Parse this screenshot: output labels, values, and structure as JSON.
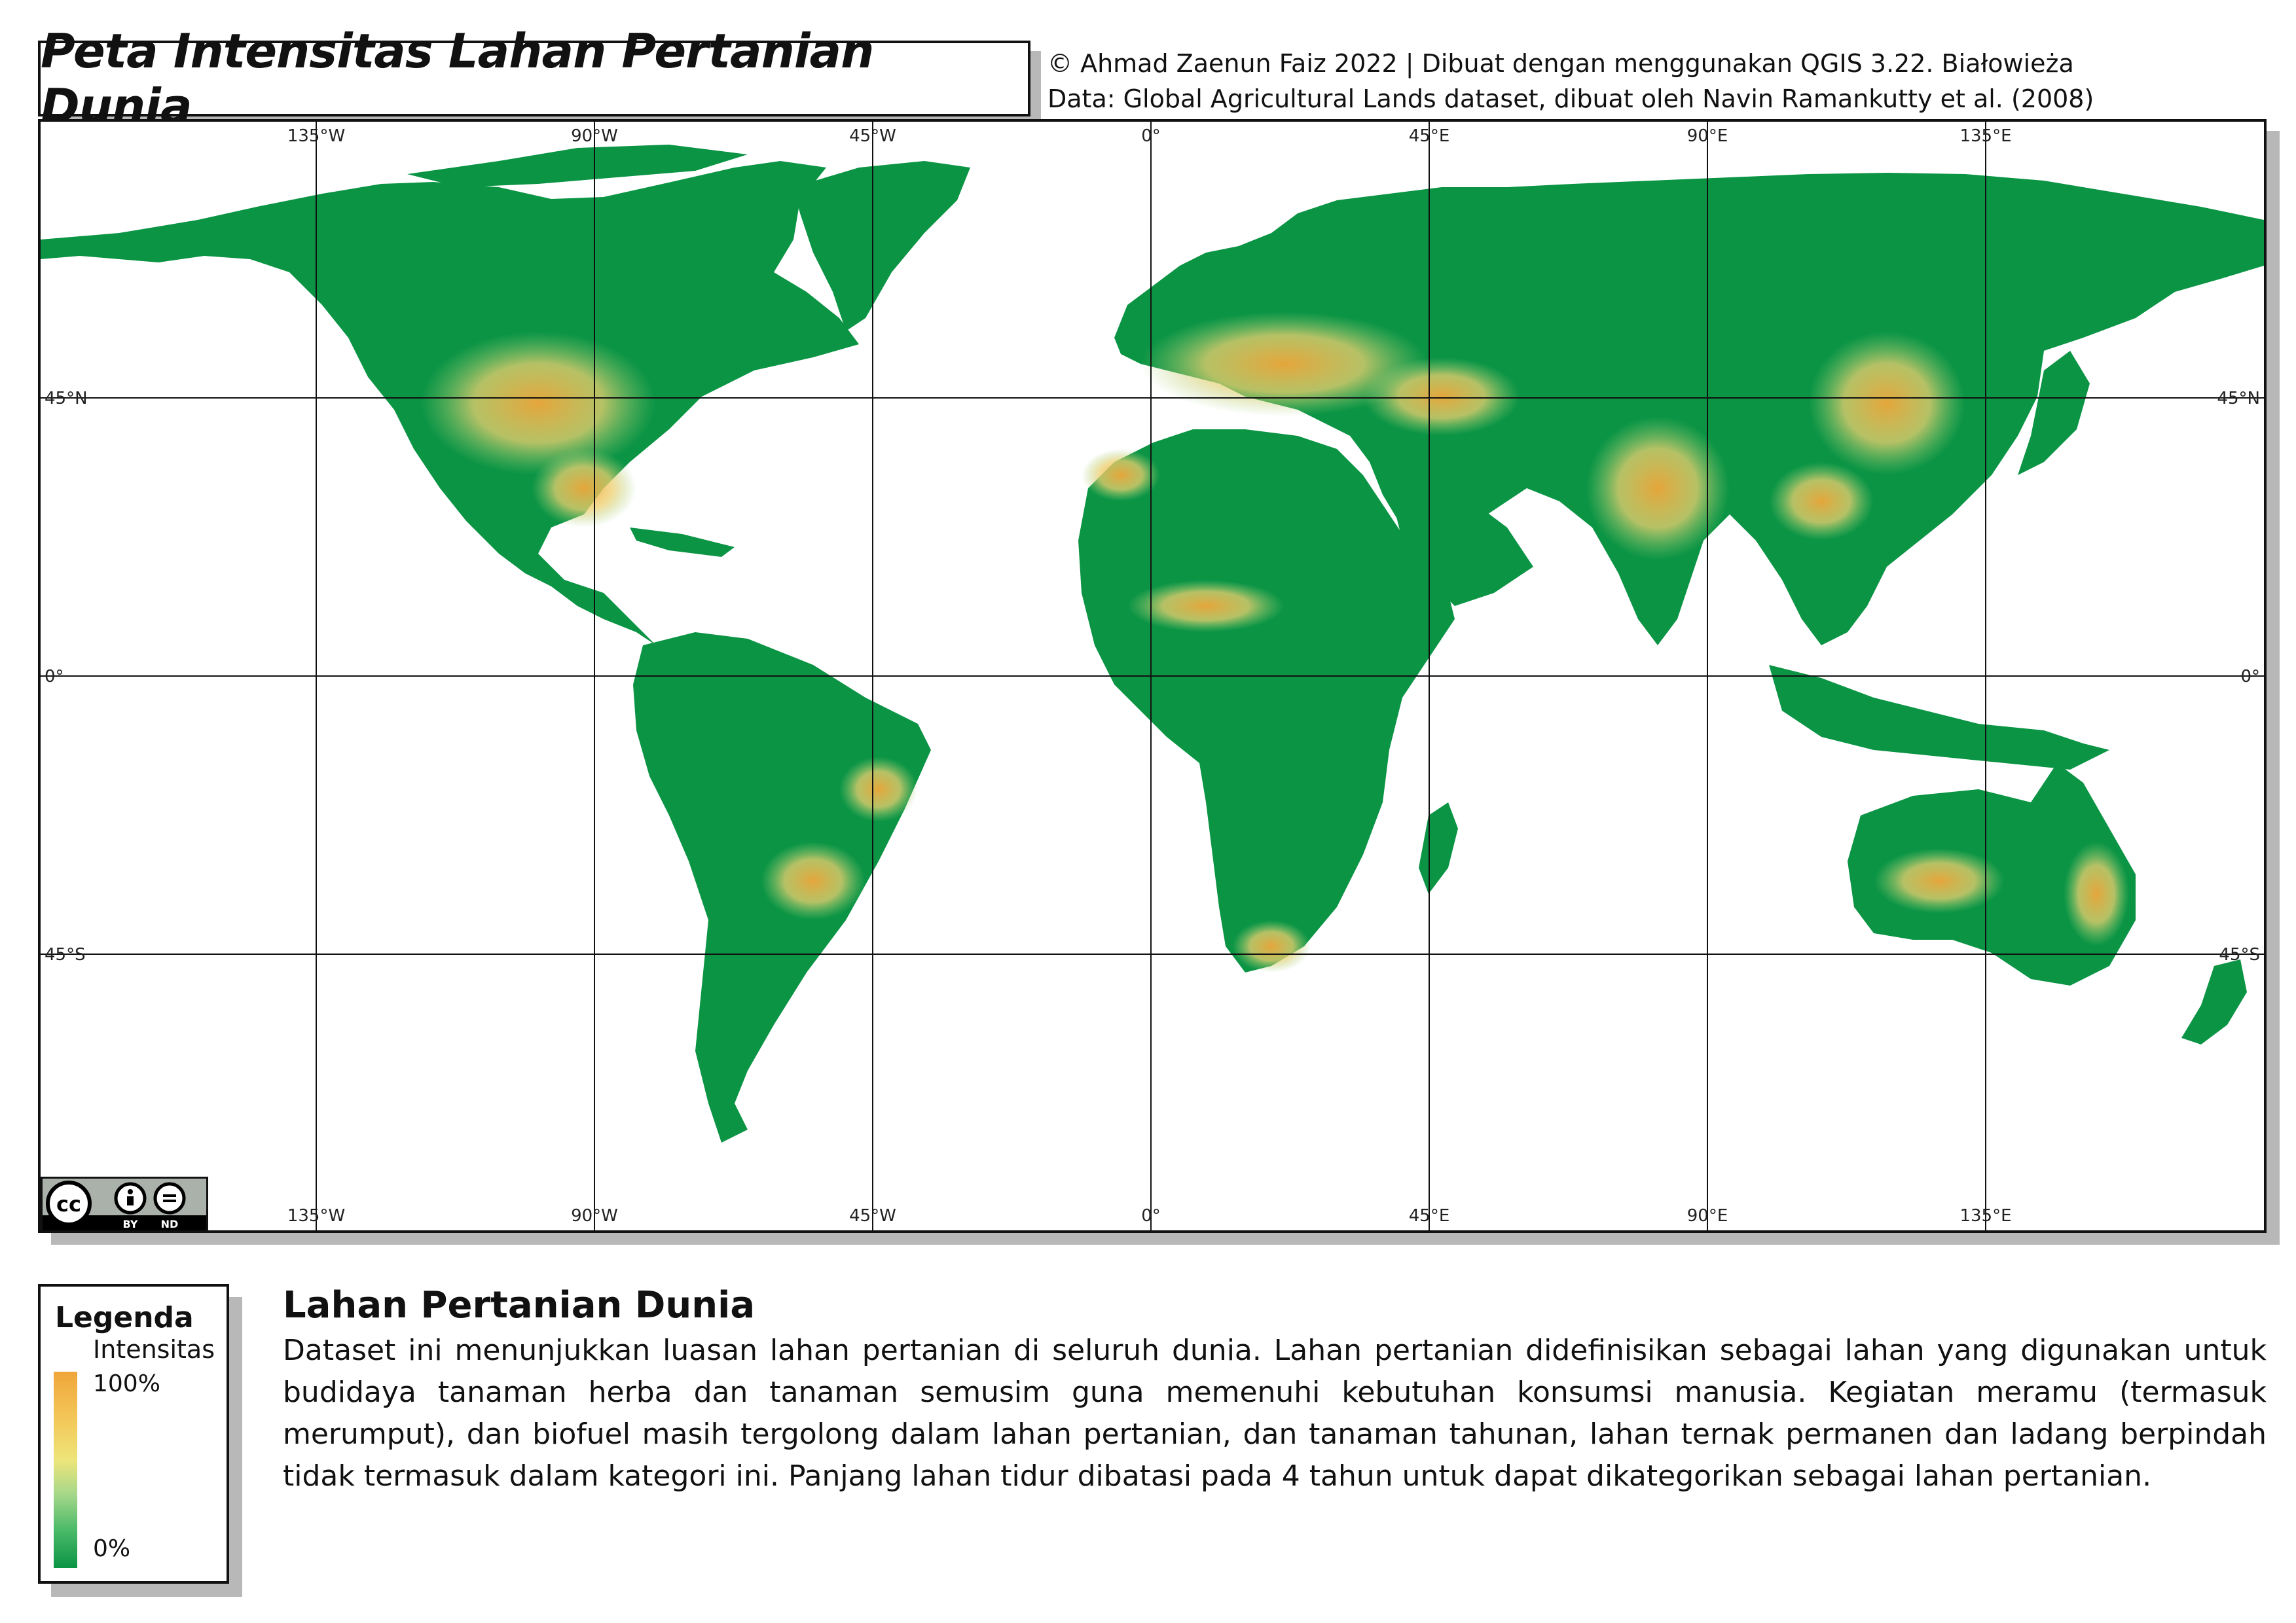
{
  "title": "Peta Intensitas Lahan Pertanian Dunia",
  "credits": {
    "line1": "© Ahmad Zaenun Faiz 2022 | Dibuat dengan menggunakan QGIS 3.22. Białowieża",
    "line2": "Data: Global Agricultural Lands dataset, dibuat oleh Navin Ramankutty et al. (2008)"
  },
  "map": {
    "lon_labels": [
      "135°W",
      "90°W",
      "45°W",
      "0°",
      "45°E",
      "90°E",
      "135°E"
    ],
    "lat_labels": [
      "45°N",
      "0°",
      "45°S"
    ],
    "colors": {
      "land": "#0a9444",
      "ocean": "#ffffff",
      "high": "#f0a63a",
      "mid": "#eee57a",
      "grid": "#111111"
    }
  },
  "license": {
    "by": "BY",
    "nd": "ND",
    "icon": "cc-by-nd-icon"
  },
  "legend": {
    "title": "Legenda",
    "subtitle": "Intensitas",
    "max_label": "100%",
    "min_label": "0%"
  },
  "description": {
    "heading": "Lahan Pertanian Dunia",
    "body": "Dataset ini menunjukkan luasan lahan pertanian di seluruh dunia. Lahan pertanian didefinisikan sebagai lahan yang digunakan untuk budidaya tanaman herba dan tanaman semusim guna memenuhi kebutuhan konsumsi manusia. Kegiatan meramu (termasuk merumput), dan biofuel masih tergolong dalam lahan pertanian, dan tanaman tahunan, lahan ternak permanen dan ladang berpindah tidak termasuk dalam kategori ini. Panjang lahan tidur dibatasi pada 4 tahun untuk dapat dikategorikan sebagai lahan pertanian."
  }
}
